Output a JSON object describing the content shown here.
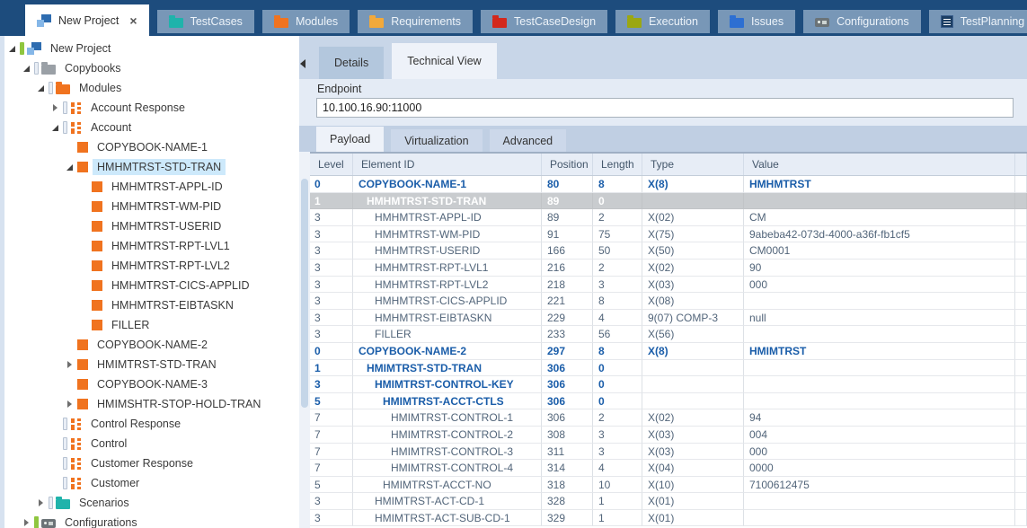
{
  "colors": {
    "titlebar": "#1d4c7d",
    "accent_blue": "#1a5da9",
    "selected_row_gray": "#c9cccf",
    "tree_selection": "#cde9fb",
    "panel_band": "#c8d6e8",
    "content_bg": "#e4ebf5"
  },
  "tab_bar": {
    "tabs": [
      {
        "label": "New Project",
        "icon": "app-logo-icon",
        "active": true,
        "closable": true,
        "close_glyph": "×"
      },
      {
        "label": "TestCases",
        "icon": "folder-icon",
        "icon_color": "#1fb3ab"
      },
      {
        "label": "Modules",
        "icon": "folder-icon",
        "icon_color": "#f0731f"
      },
      {
        "label": "Requirements",
        "icon": "folder-icon",
        "icon_color": "#f2a93b"
      },
      {
        "label": "TestCaseDesign",
        "icon": "folder-icon",
        "icon_color": "#d3281c"
      },
      {
        "label": "Execution",
        "icon": "folder-icon",
        "icon_color": "#9ba712"
      },
      {
        "label": "Issues",
        "icon": "folder-icon",
        "icon_color": "#2d6fd2"
      },
      {
        "label": "Configurations",
        "icon": "plug-icon",
        "icon_color": "#6b7377"
      },
      {
        "label": "TestPlanning",
        "icon": "list-icon",
        "icon_color": "#1c3e63"
      }
    ]
  },
  "tree": {
    "items": [
      {
        "label": "New Project",
        "level": 0,
        "arrow": "expanded",
        "icon": "app-logo-icon",
        "bar": "green"
      },
      {
        "label": "Copybooks",
        "level": 1,
        "arrow": "expanded",
        "icon": "folder-icon",
        "icon_color": "#9aa0a6",
        "bar": "gray"
      },
      {
        "label": "Modules",
        "level": 2,
        "arrow": "expanded",
        "icon": "folder-icon",
        "icon_color": "#f0731f",
        "bar": "gray"
      },
      {
        "label": "Account Response",
        "level": 3,
        "arrow": "collapsed",
        "icon": "module-icon",
        "bar": "gray"
      },
      {
        "label": "Account",
        "level": 3,
        "arrow": "expanded",
        "icon": "module-icon",
        "bar": "gray"
      },
      {
        "label": "COPYBOOK-NAME-1",
        "level": 4,
        "arrow": null,
        "icon": "copybook-field-icon",
        "bar": null
      },
      {
        "label": "HMHMTRST-STD-TRAN",
        "level": 4,
        "arrow": "expanded",
        "icon": "copybook-field-icon",
        "bar": null,
        "selected": true
      },
      {
        "label": "HMHMTRST-APPL-ID",
        "level": 5,
        "arrow": null,
        "icon": "copybook-field-icon",
        "bar": null
      },
      {
        "label": "HMHMTRST-WM-PID",
        "level": 5,
        "arrow": null,
        "icon": "copybook-field-icon",
        "bar": null
      },
      {
        "label": "HMHMTRST-USERID",
        "level": 5,
        "arrow": null,
        "icon": "copybook-field-icon",
        "bar": null
      },
      {
        "label": "HMHMTRST-RPT-LVL1",
        "level": 5,
        "arrow": null,
        "icon": "copybook-field-icon",
        "bar": null
      },
      {
        "label": "HMHMTRST-RPT-LVL2",
        "level": 5,
        "arrow": null,
        "icon": "copybook-field-icon",
        "bar": null
      },
      {
        "label": "HMHMTRST-CICS-APPLID",
        "level": 5,
        "arrow": null,
        "icon": "copybook-field-icon",
        "bar": null
      },
      {
        "label": "HMHMTRST-EIBTASKN",
        "level": 5,
        "arrow": null,
        "icon": "copybook-field-icon",
        "bar": null
      },
      {
        "label": "FILLER",
        "level": 5,
        "arrow": null,
        "icon": "copybook-field-icon",
        "bar": null
      },
      {
        "label": "COPYBOOK-NAME-2",
        "level": 4,
        "arrow": null,
        "icon": "copybook-field-icon",
        "bar": null
      },
      {
        "label": "HMIMTRST-STD-TRAN",
        "level": 4,
        "arrow": "collapsed",
        "icon": "copybook-field-icon",
        "bar": null
      },
      {
        "label": "COPYBOOK-NAME-3",
        "level": 4,
        "arrow": null,
        "icon": "copybook-field-icon",
        "bar": null
      },
      {
        "label": "HMIMSHTR-STOP-HOLD-TRAN",
        "level": 4,
        "arrow": "collapsed",
        "icon": "copybook-field-icon",
        "bar": null
      },
      {
        "label": "Control Response",
        "level": 3,
        "arrow": null,
        "icon": "module-icon",
        "bar": "gray"
      },
      {
        "label": "Control",
        "level": 3,
        "arrow": null,
        "icon": "module-icon",
        "bar": "gray"
      },
      {
        "label": "Customer Response",
        "level": 3,
        "arrow": null,
        "icon": "module-icon",
        "bar": "gray"
      },
      {
        "label": "Customer",
        "level": 3,
        "arrow": null,
        "icon": "module-icon",
        "bar": "gray"
      },
      {
        "label": "Scenarios",
        "level": 2,
        "arrow": "collapsed",
        "icon": "folder-icon",
        "icon_color": "#1fb3ab",
        "bar": "gray"
      },
      {
        "label": "Configurations",
        "level": 1,
        "arrow": "collapsed",
        "icon": "plug-icon",
        "bar": "green"
      }
    ]
  },
  "panel": {
    "view_tabs": [
      {
        "label": "Details",
        "active": false
      },
      {
        "label": "Technical View",
        "active": true
      }
    ],
    "endpoint": {
      "label": "Endpoint",
      "value": "10.100.16.90:11000"
    },
    "payload_tabs": [
      {
        "label": "Payload",
        "active": true
      },
      {
        "label": "Virtualization",
        "active": false
      },
      {
        "label": "Advanced",
        "active": false
      }
    ],
    "table": {
      "columns": [
        "Level",
        "Element ID",
        "Position",
        "Length",
        "Type",
        "Value"
      ],
      "rows": [
        {
          "level": "0",
          "element_id": "COPYBOOK-NAME-1",
          "position": "80",
          "length": "8",
          "type": "X(8)",
          "value": "HMHMTRST",
          "style": "group",
          "indent": 0
        },
        {
          "level": "1",
          "element_id": "HMHMTRST-STD-TRAN",
          "position": "89",
          "length": "0",
          "type": "",
          "value": "",
          "style": "selected",
          "indent": 1
        },
        {
          "level": "3",
          "element_id": "HMHMTRST-APPL-ID",
          "position": "89",
          "length": "2",
          "type": "X(02)",
          "value": "CM",
          "style": "normal",
          "indent": 2
        },
        {
          "level": "3",
          "element_id": "HMHMTRST-WM-PID",
          "position": "91",
          "length": "75",
          "type": "X(75)",
          "value": "9abeba42-073d-4000-a36f-fb1cf5",
          "style": "normal",
          "indent": 2
        },
        {
          "level": "3",
          "element_id": "HMHMTRST-USERID",
          "position": "166",
          "length": "50",
          "type": "X(50)",
          "value": "CM0001",
          "style": "normal",
          "indent": 2
        },
        {
          "level": "3",
          "element_id": "HMHMTRST-RPT-LVL1",
          "position": "216",
          "length": "2",
          "type": "X(02)",
          "value": "90",
          "style": "normal",
          "indent": 2
        },
        {
          "level": "3",
          "element_id": "HMHMTRST-RPT-LVL2",
          "position": "218",
          "length": "3",
          "type": "X(03)",
          "value": "000",
          "style": "normal",
          "indent": 2
        },
        {
          "level": "3",
          "element_id": "HMHMTRST-CICS-APPLID",
          "position": "221",
          "length": "8",
          "type": "X(08)",
          "value": "",
          "style": "normal",
          "indent": 2
        },
        {
          "level": "3",
          "element_id": "HMHMTRST-EIBTASKN",
          "position": "229",
          "length": "4",
          "type": "9(07) COMP-3",
          "value": "null",
          "style": "normal",
          "indent": 2
        },
        {
          "level": "3",
          "element_id": "FILLER",
          "position": "233",
          "length": "56",
          "type": "X(56)",
          "value": "",
          "style": "normal",
          "indent": 2
        },
        {
          "level": "0",
          "element_id": "COPYBOOK-NAME-2",
          "position": "297",
          "length": "8",
          "type": "X(8)",
          "value": "HMIMTRST",
          "style": "group",
          "indent": 0
        },
        {
          "level": "1",
          "element_id": "HMIMTRST-STD-TRAN",
          "position": "306",
          "length": "0",
          "type": "",
          "value": "",
          "style": "group",
          "indent": 1
        },
        {
          "level": "3",
          "element_id": "HMIMTRST-CONTROL-KEY",
          "position": "306",
          "length": "0",
          "type": "",
          "value": "",
          "style": "group",
          "indent": 2
        },
        {
          "level": "5",
          "element_id": "HMIMTRST-ACCT-CTLS",
          "position": "306",
          "length": "0",
          "type": "",
          "value": "",
          "style": "group",
          "indent": 3
        },
        {
          "level": "7",
          "element_id": "HMIMTRST-CONTROL-1",
          "position": "306",
          "length": "2",
          "type": "X(02)",
          "value": "94",
          "style": "normal",
          "indent": 4
        },
        {
          "level": "7",
          "element_id": "HMIMTRST-CONTROL-2",
          "position": "308",
          "length": "3",
          "type": "X(03)",
          "value": "004",
          "style": "normal",
          "indent": 4
        },
        {
          "level": "7",
          "element_id": "HMIMTRST-CONTROL-3",
          "position": "311",
          "length": "3",
          "type": "X(03)",
          "value": "000",
          "style": "normal",
          "indent": 4
        },
        {
          "level": "7",
          "element_id": "HMIMTRST-CONTROL-4",
          "position": "314",
          "length": "4",
          "type": "X(04)",
          "value": "0000",
          "style": "normal",
          "indent": 4
        },
        {
          "level": "5",
          "element_id": "HMIMTRST-ACCT-NO",
          "position": "318",
          "length": "10",
          "type": "X(10)",
          "value": "7100612475",
          "style": "normal",
          "indent": 3
        },
        {
          "level": "3",
          "element_id": "HMIMTRST-ACT-CD-1",
          "position": "328",
          "length": "1",
          "type": "X(01)",
          "value": "",
          "style": "normal",
          "indent": 2
        },
        {
          "level": "3",
          "element_id": "HMIMTRST-ACT-SUB-CD-1",
          "position": "329",
          "length": "1",
          "type": "X(01)",
          "value": "",
          "style": "normal",
          "indent": 2
        }
      ]
    }
  }
}
